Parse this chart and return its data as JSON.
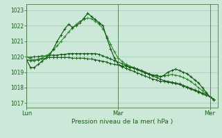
{
  "background_color": "#cce8d8",
  "grid_color": "#99ccaa",
  "line_color_dark": "#1a5c1a",
  "line_color_med": "#2d8a2d",
  "xlabel": "Pression niveau de la mer( hPa )",
  "ylim": [
    1016.7,
    1023.4
  ],
  "yticks": [
    1017,
    1018,
    1019,
    1020,
    1021,
    1022,
    1023
  ],
  "day_labels": [
    "Lun",
    "Mar",
    "Mer"
  ],
  "day_positions": [
    0,
    24,
    48
  ],
  "xlim": [
    0,
    50
  ],
  "series1": [
    1019.8,
    1019.3,
    1019.3,
    1019.5,
    1019.7,
    1019.9,
    1020.1,
    1020.5,
    1021.0,
    1021.4,
    1021.8,
    1022.1,
    1021.9,
    1022.0,
    1022.2,
    1022.5,
    1022.8,
    1022.6,
    1022.4,
    1022.2,
    1022.0,
    1021.2,
    1020.5,
    1019.9,
    1019.5,
    1019.4,
    1019.4,
    1019.3,
    1019.3,
    1019.2,
    1019.1,
    1019.0,
    1018.9,
    1018.8,
    1018.8,
    1018.7,
    1018.8,
    1019.0,
    1019.1,
    1019.2,
    1019.1,
    1019.0,
    1018.9,
    1018.7,
    1018.5,
    1018.3,
    1018.0,
    1017.7,
    1017.4,
    1017.2
  ],
  "series2": [
    1020.0,
    1019.85,
    1019.8,
    1019.85,
    1019.9,
    1020.05,
    1020.2,
    1020.45,
    1020.7,
    1021.0,
    1021.3,
    1021.6,
    1021.85,
    1022.1,
    1022.3,
    1022.4,
    1022.5,
    1022.45,
    1022.3,
    1022.1,
    1021.8,
    1021.3,
    1020.8,
    1020.3,
    1019.9,
    1019.7,
    1019.5,
    1019.4,
    1019.3,
    1019.2,
    1019.1,
    1019.0,
    1018.9,
    1018.8,
    1018.75,
    1018.7,
    1018.75,
    1018.8,
    1018.85,
    1018.8,
    1018.75,
    1018.65,
    1018.55,
    1018.4,
    1018.2,
    1018.0,
    1017.8,
    1017.6,
    1017.4,
    1017.25
  ],
  "series3": [
    1020.0,
    1019.95,
    1020.0,
    1020.0,
    1020.05,
    1020.05,
    1020.1,
    1020.1,
    1020.1,
    1020.15,
    1020.15,
    1020.2,
    1020.2,
    1020.2,
    1020.2,
    1020.2,
    1020.2,
    1020.2,
    1020.2,
    1020.15,
    1020.05,
    1019.95,
    1019.85,
    1019.75,
    1019.65,
    1019.55,
    1019.45,
    1019.35,
    1019.25,
    1019.15,
    1019.05,
    1018.95,
    1018.85,
    1018.75,
    1018.65,
    1018.55,
    1018.45,
    1018.4,
    1018.35,
    1018.3,
    1018.25,
    1018.15,
    1018.05,
    1017.95,
    1017.85,
    1017.75,
    1017.65,
    1017.55,
    1017.4,
    1017.25
  ],
  "series4": [
    1019.8,
    1019.75,
    1019.75,
    1019.8,
    1019.85,
    1019.9,
    1019.95,
    1019.95,
    1019.95,
    1019.95,
    1019.95,
    1019.95,
    1019.9,
    1019.9,
    1019.9,
    1019.9,
    1019.85,
    1019.85,
    1019.8,
    1019.75,
    1019.7,
    1019.65,
    1019.55,
    1019.5,
    1019.45,
    1019.35,
    1019.25,
    1019.15,
    1019.05,
    1018.95,
    1018.85,
    1018.75,
    1018.65,
    1018.55,
    1018.5,
    1018.4,
    1018.4,
    1018.35,
    1018.3,
    1018.25,
    1018.2,
    1018.1,
    1018.0,
    1017.9,
    1017.8,
    1017.7,
    1017.6,
    1017.5,
    1017.4,
    1017.25
  ]
}
